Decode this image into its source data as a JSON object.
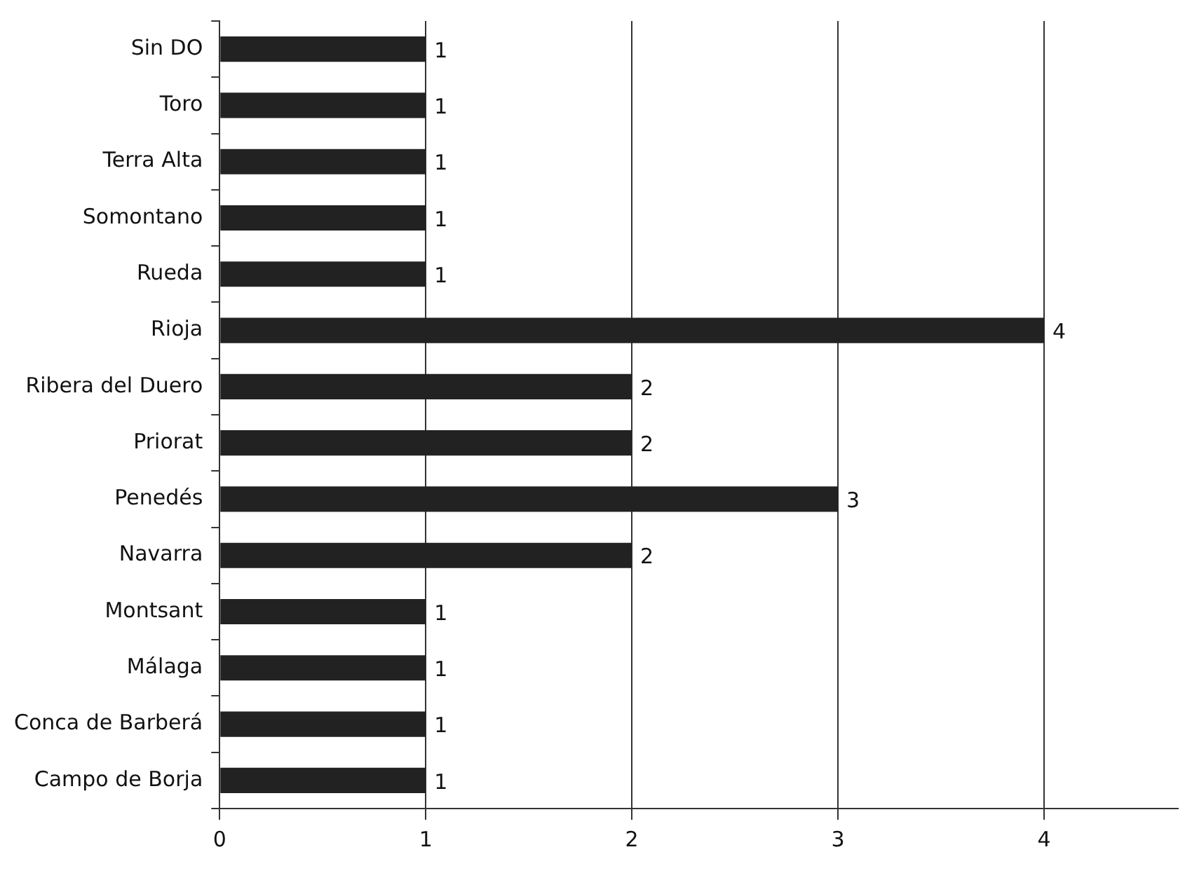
{
  "chart_data": {
    "type": "bar",
    "orientation": "horizontal",
    "categories": [
      "Sin DO",
      "Toro",
      "Terra Alta",
      "Somontano",
      "Rueda",
      "Rioja",
      "Ribera del Duero",
      "Priorat",
      "Penedés",
      "Navarra",
      "Montsant",
      "Málaga",
      "Conca de Barberá",
      "Campo de Borja"
    ],
    "values": [
      1,
      1,
      1,
      1,
      1,
      4,
      2,
      2,
      3,
      2,
      1,
      1,
      1,
      1
    ],
    "color": "#222222",
    "xlim": [
      0,
      4.65
    ],
    "xticks": [
      0,
      1,
      2,
      3,
      4
    ],
    "grid": "x",
    "data_labels": true,
    "legend": false
  }
}
